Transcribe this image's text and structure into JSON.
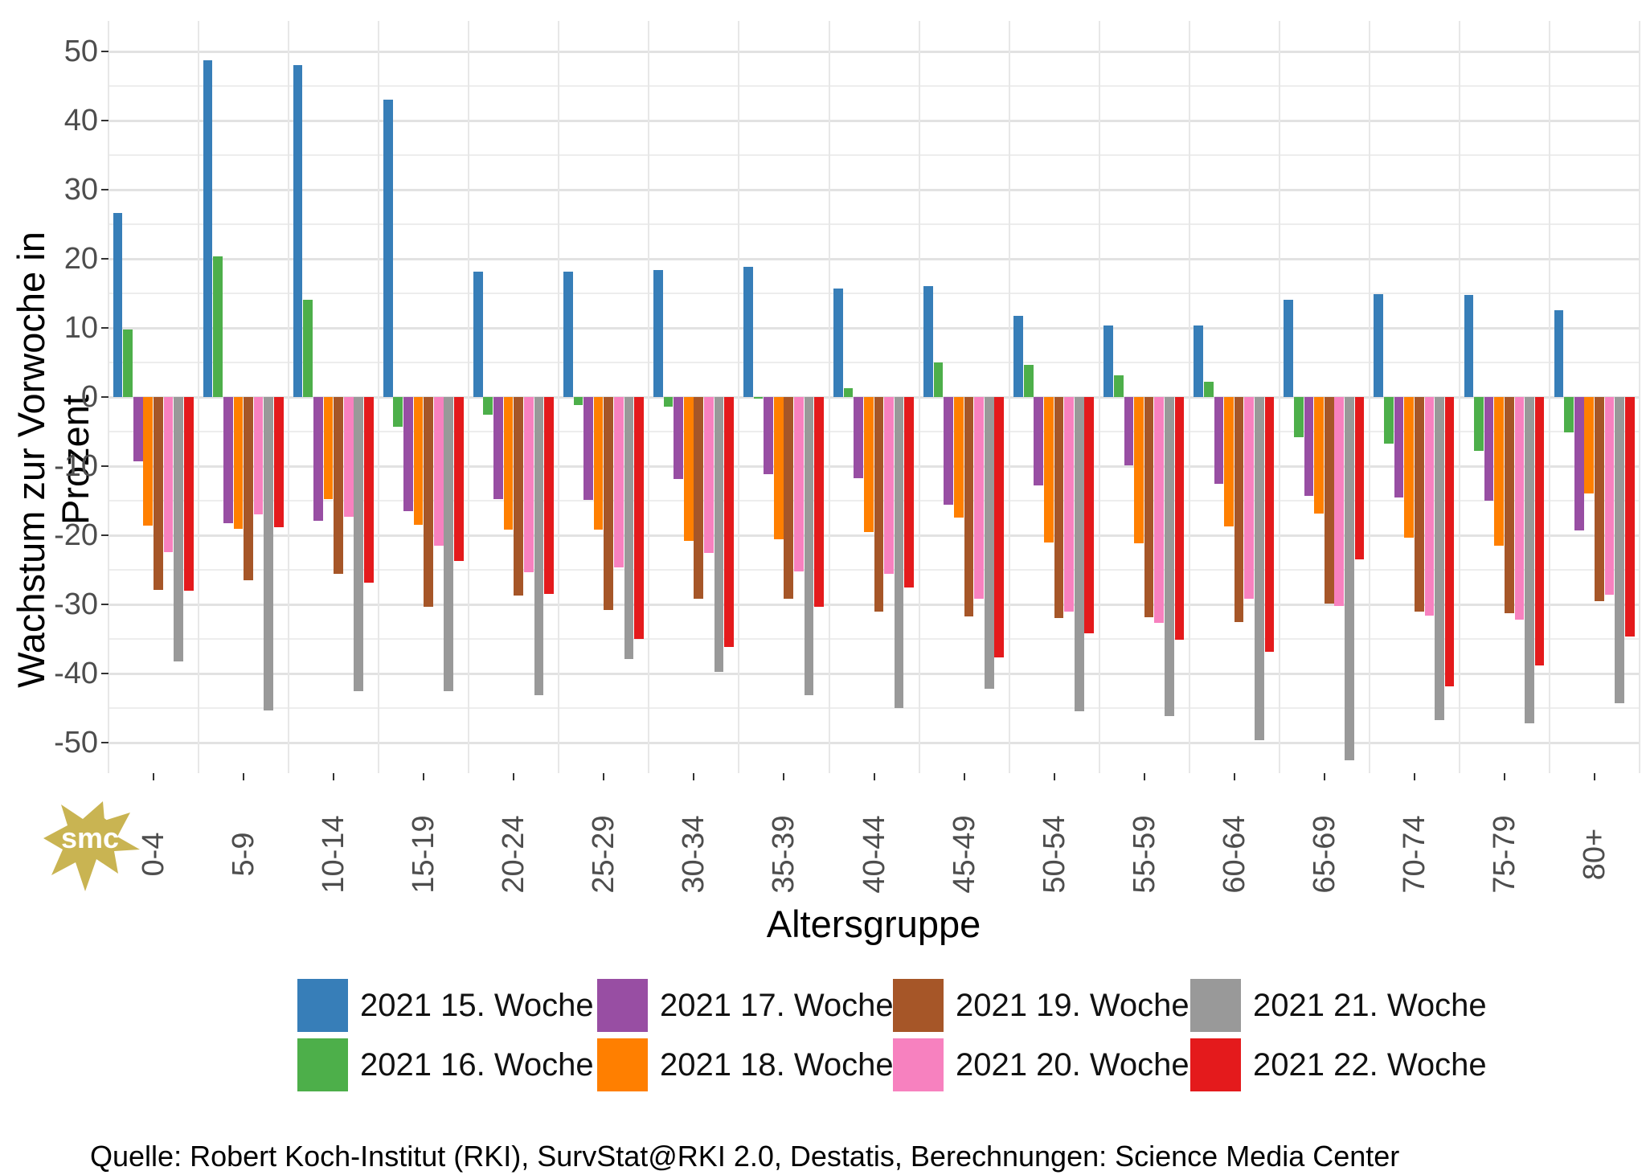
{
  "chart_data": {
    "type": "bar",
    "title": "",
    "xlabel": "Altersgruppe",
    "ylabel": "Wachstum zur Vorwoche in Prozent",
    "ylim": [
      -54,
      54
    ],
    "yticks": [
      50,
      40,
      30,
      20,
      10,
      0,
      -10,
      -20,
      -30,
      -40,
      -50
    ],
    "grid": "major and minor horizontal lines, vertical lines at group boundaries",
    "legend_position": "bottom, 2 rows x 4 columns",
    "categories": [
      "0-4",
      "5-9",
      "10-14",
      "15-19",
      "20-24",
      "25-29",
      "30-34",
      "35-39",
      "40-44",
      "45-49",
      "50-54",
      "55-59",
      "60-64",
      "65-69",
      "70-74",
      "75-79",
      "80+"
    ],
    "series": [
      {
        "name": "2021 15. Woche",
        "color": "#377EB8",
        "values": [
          26.6,
          48.7,
          48.0,
          43.0,
          18.1,
          18.2,
          18.4,
          18.8,
          15.7,
          16.0,
          11.8,
          10.3,
          10.4,
          14.1,
          14.9,
          14.8,
          12.6
        ]
      },
      {
        "name": "2021 16. Woche",
        "color": "#4DAF4A",
        "values": [
          9.8,
          20.4,
          14.1,
          -4.3,
          -2.5,
          -1.1,
          -1.4,
          -0.2,
          1.3,
          5.0,
          4.7,
          3.1,
          2.2,
          -5.8,
          -6.7,
          -7.8,
          -5.1
        ]
      },
      {
        "name": "2021 17. Woche",
        "color": "#984EA3",
        "values": [
          -9.3,
          -18.2,
          -17.9,
          -16.5,
          -14.8,
          -14.9,
          -11.9,
          -11.2,
          -11.7,
          -15.6,
          -12.8,
          -9.9,
          -12.5,
          -14.3,
          -14.5,
          -15.0,
          -19.3
        ]
      },
      {
        "name": "2021 18. Woche",
        "color": "#FF7F00",
        "values": [
          -18.6,
          -19.1,
          -14.8,
          -18.5,
          -19.2,
          -19.2,
          -20.8,
          -20.6,
          -19.5,
          -17.4,
          -21.0,
          -21.2,
          -18.7,
          -16.9,
          -20.3,
          -21.5,
          -14.0
        ]
      },
      {
        "name": "2021 19. Woche",
        "color": "#A65628",
        "values": [
          -27.9,
          -26.5,
          -25.6,
          -30.3,
          -28.7,
          -30.8,
          -29.2,
          -29.2,
          -31.0,
          -31.7,
          -32.0,
          -31.9,
          -32.6,
          -29.9,
          -31.0,
          -31.3,
          -29.5
        ]
      },
      {
        "name": "2021 20. Woche",
        "color": "#F781BF",
        "values": [
          -22.4,
          -17.0,
          -17.3,
          -21.5,
          -25.4,
          -24.6,
          -22.6,
          -25.2,
          -25.6,
          -29.2,
          -31.0,
          -32.7,
          -29.2,
          -30.2,
          -31.6,
          -32.2,
          -28.6
        ]
      },
      {
        "name": "2021 21. Woche",
        "color": "#999999",
        "values": [
          -38.3,
          -45.3,
          -42.6,
          -42.6,
          -43.1,
          -37.9,
          -39.8,
          -43.1,
          -45.0,
          -42.2,
          -45.5,
          -46.1,
          -49.6,
          -52.6,
          -46.7,
          -47.2,
          -44.3
        ]
      },
      {
        "name": "2021 22. Woche",
        "color": "#E41A1C",
        "values": [
          -28.0,
          -18.8,
          -26.9,
          -23.7,
          -28.5,
          -35.0,
          -36.2,
          -30.4,
          -27.6,
          -37.7,
          -34.2,
          -35.1,
          -36.9,
          -23.5,
          -41.8,
          -38.8,
          -34.7
        ]
      }
    ],
    "legend_row1": [
      "2021 15. Woche",
      "2021 17. Woche",
      "2021 19. Woche",
      "2021 21. Woche"
    ],
    "legend_row2": [
      "2021 16. Woche",
      "2021 18. Woche",
      "2021 20. Woche",
      "2021 22. Woche"
    ]
  },
  "watermark": {
    "text": "smc",
    "color": "#c9b452"
  },
  "source_note": "Quelle: Robert Koch-Institut (RKI), SurvStat@RKI 2.0, Destatis, Berechnungen: Science Media Center"
}
